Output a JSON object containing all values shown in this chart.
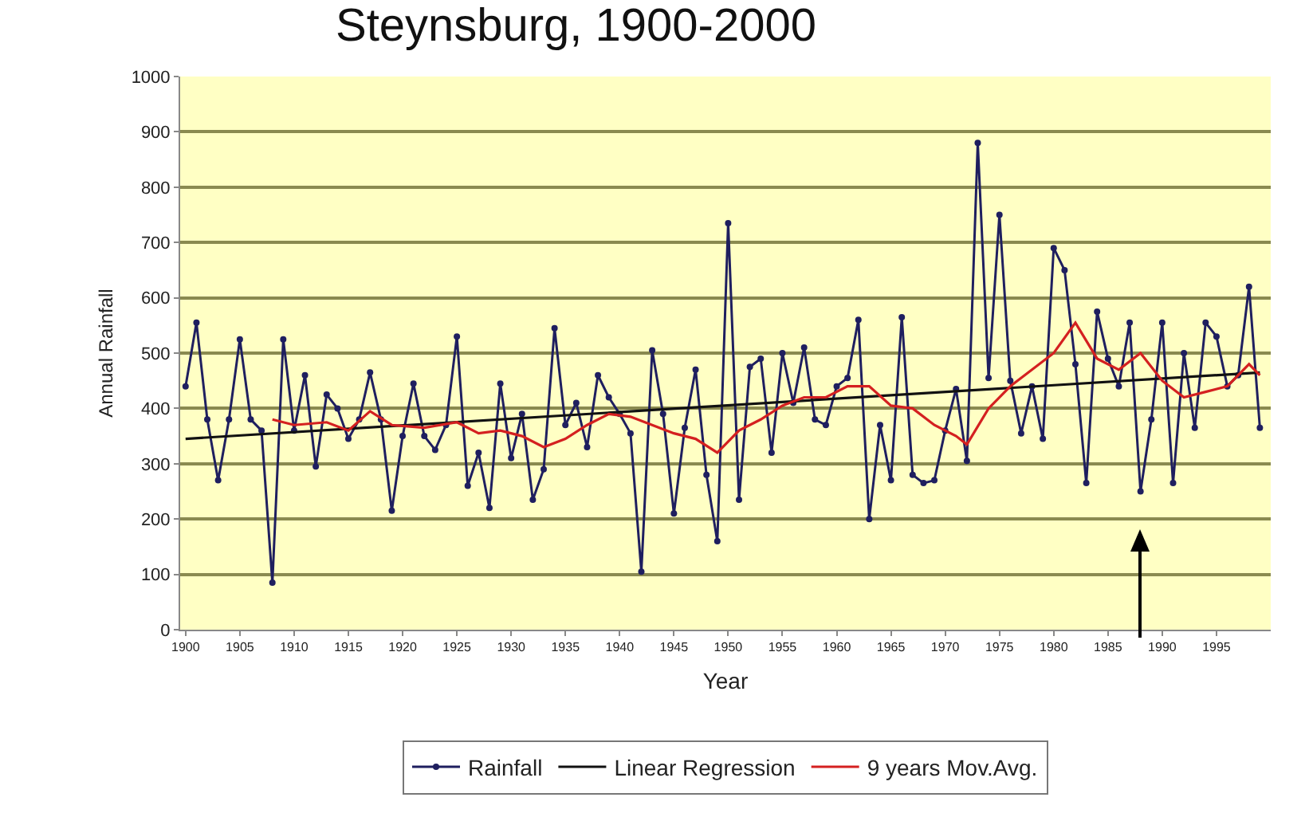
{
  "chart_data": {
    "type": "line",
    "title": "Steynsburg, 1900-2000",
    "xlabel": "Year",
    "ylabel": "Annual Rainfall",
    "xlim": [
      1899.5,
      2000
    ],
    "xticks": [
      1900,
      1905,
      1910,
      1915,
      1920,
      1925,
      1930,
      1935,
      1940,
      1945,
      1950,
      1955,
      1960,
      1965,
      1970,
      1975,
      1980,
      1985,
      1990,
      1995
    ],
    "ylim": [
      0,
      1000
    ],
    "yticks": [
      0,
      100,
      200,
      300,
      400,
      500,
      600,
      700,
      800,
      900,
      1000
    ],
    "grid": "y",
    "legend": "bottom",
    "series": [
      {
        "name": "Rainfall",
        "color": "#1f1f5f",
        "marker": "circle",
        "x": [
          1900,
          1901,
          1902,
          1903,
          1904,
          1905,
          1906,
          1907,
          1908,
          1909,
          1910,
          1911,
          1912,
          1913,
          1914,
          1915,
          1916,
          1917,
          1918,
          1919,
          1920,
          1921,
          1922,
          1923,
          1924,
          1925,
          1926,
          1927,
          1928,
          1929,
          1930,
          1931,
          1932,
          1933,
          1934,
          1935,
          1936,
          1937,
          1938,
          1939,
          1940,
          1941,
          1942,
          1943,
          1944,
          1945,
          1946,
          1947,
          1948,
          1949,
          1950,
          1951,
          1952,
          1953,
          1954,
          1955,
          1956,
          1957,
          1958,
          1959,
          1960,
          1961,
          1962,
          1963,
          1964,
          1965,
          1966,
          1967,
          1968,
          1969,
          1970,
          1971,
          1972,
          1973,
          1974,
          1975,
          1976,
          1977,
          1978,
          1979,
          1980,
          1981,
          1982,
          1983,
          1984,
          1985,
          1986,
          1987,
          1988,
          1989,
          1990,
          1991,
          1992,
          1993,
          1994,
          1995,
          1996,
          1997,
          1998,
          1999
        ],
        "values": [
          440,
          555,
          380,
          270,
          380,
          525,
          380,
          360,
          85,
          525,
          360,
          460,
          295,
          425,
          400,
          345,
          380,
          465,
          380,
          215,
          350,
          445,
          350,
          325,
          370,
          530,
          260,
          320,
          220,
          445,
          310,
          390,
          235,
          290,
          545,
          370,
          410,
          330,
          460,
          420,
          390,
          355,
          105,
          505,
          390,
          210,
          365,
          470,
          280,
          160,
          735,
          235,
          475,
          490,
          320,
          500,
          410,
          510,
          380,
          370,
          440,
          455,
          560,
          200,
          370,
          270,
          565,
          280,
          265,
          270,
          360,
          435,
          305,
          880,
          455,
          750,
          450,
          355,
          440,
          345,
          690,
          650,
          480,
          265,
          575,
          490,
          440,
          555,
          250,
          380,
          555,
          265,
          500,
          365,
          555,
          530,
          440,
          460,
          620,
          365
        ]
      },
      {
        "name": "Linear Regression",
        "color": "#111111",
        "marker": "none",
        "x": [
          1900,
          1999
        ],
        "values": [
          345,
          465
        ]
      },
      {
        "name": "9 years Mov.Avg.",
        "color": "#d42020",
        "marker": "none",
        "x": [
          1908,
          1910,
          1913,
          1915,
          1917,
          1919,
          1922,
          1925,
          1927,
          1929,
          1931,
          1933,
          1935,
          1937,
          1939,
          1941,
          1943,
          1945,
          1947,
          1949,
          1951,
          1953,
          1955,
          1957,
          1959,
          1961,
          1963,
          1965,
          1967,
          1969,
          1971,
          1972,
          1974,
          1976,
          1978,
          1980,
          1982,
          1984,
          1986,
          1988,
          1990,
          1992,
          1994,
          1996,
          1998,
          1999
        ],
        "values": [
          380,
          370,
          375,
          360,
          395,
          370,
          365,
          375,
          355,
          360,
          350,
          330,
          345,
          370,
          390,
          385,
          370,
          355,
          345,
          320,
          360,
          380,
          405,
          420,
          420,
          440,
          440,
          405,
          400,
          370,
          350,
          335,
          400,
          440,
          470,
          500,
          555,
          490,
          470,
          500,
          450,
          420,
          430,
          440,
          480,
          460
        ]
      }
    ]
  }
}
